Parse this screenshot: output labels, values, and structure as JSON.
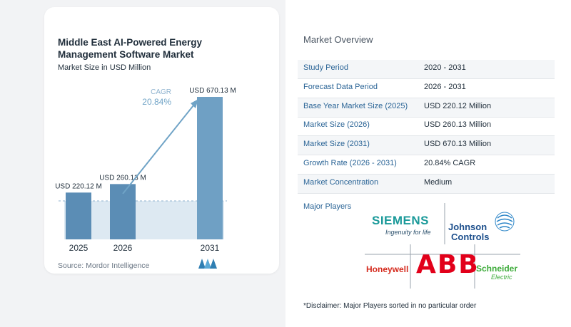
{
  "chart_data": {
    "type": "bar",
    "title": "Middle East AI-Powered Energy Management Software Market",
    "subtitle": "Market Size in USD Million",
    "categories": [
      "2025",
      "2026",
      "2031"
    ],
    "values": [
      220.12,
      260.13,
      670.13
    ],
    "value_labels": [
      "USD 220.12 M",
      "USD 260.13 M",
      "USD 670.13 M"
    ],
    "cagr_label": "CAGR",
    "cagr_value": "20.84%",
    "colors": {
      "bar": "#5b8db5",
      "bar_light": "#6fa0c4",
      "band": "#dde9f2",
      "arrow": "#6fa3c6",
      "cagr_text": "#6fa3c6"
    }
  },
  "source": "Source: Mordor Intelligence",
  "overview": {
    "title": "Market Overview",
    "rows": [
      {
        "label": "Study Period",
        "value": "2020 - 2031"
      },
      {
        "label": "Forecast Data Period",
        "value": "2026 - 2031"
      },
      {
        "label": "Base Year Market Size (2025)",
        "value": "USD 220.12 Million"
      },
      {
        "label": "Market Size (2026)",
        "value": "USD 260.13 Million"
      },
      {
        "label": "Market Size (2031)",
        "value": "USD 670.13 Million"
      },
      {
        "label": "Growth Rate (2026 - 2031)",
        "value": "20.84% CAGR"
      },
      {
        "label": "Market Concentration",
        "value": "Medium"
      }
    ]
  },
  "players": {
    "title": "Major Players",
    "siemens": "SIEMENS",
    "siemens_tag": "Ingenuity for life",
    "johnson_1": "Johnson",
    "johnson_2": "Controls",
    "honeywell": "Honeywell",
    "abb": "ABB",
    "schneider_1": "Schneider",
    "schneider_2": "Electric"
  },
  "disclaimer": "*Disclaimer: Major Players sorted in no particular order"
}
